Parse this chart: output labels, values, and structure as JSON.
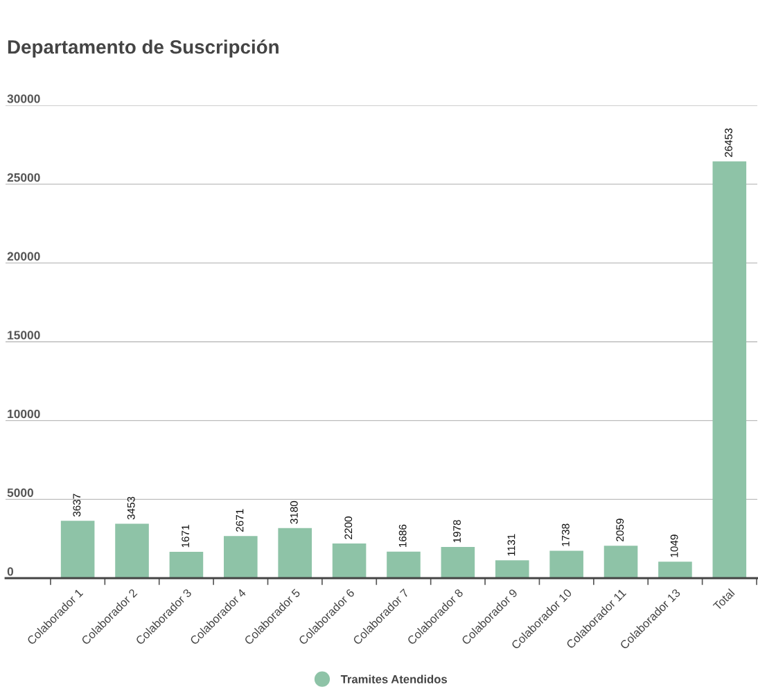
{
  "chart_data": {
    "type": "bar",
    "title": "Departamento de Suscripción",
    "categories": [
      "Colaborador 1",
      "Colaborador 2",
      "Colaborador 3",
      "Colaborador 4",
      "Colaborador 5",
      "Colaborador 6",
      "Colaborador 7",
      "Colaborador 8",
      "Colaborador 9",
      "Colaborador 10",
      "Colaborador 11",
      "Colaborador 13",
      "Total"
    ],
    "series": [
      {
        "name": "Tramites Atendidos",
        "color": "#8ec3a7",
        "values": [
          3637,
          3453,
          1671,
          2671,
          3180,
          2200,
          1686,
          1978,
          1131,
          1738,
          2059,
          1049,
          26453
        ]
      }
    ],
    "ylim": [
      0,
      30000
    ],
    "yticks": [
      0,
      5000,
      10000,
      15000,
      20000,
      25000,
      30000
    ],
    "grid": "y",
    "legend": "bottom",
    "data_labels": true
  }
}
